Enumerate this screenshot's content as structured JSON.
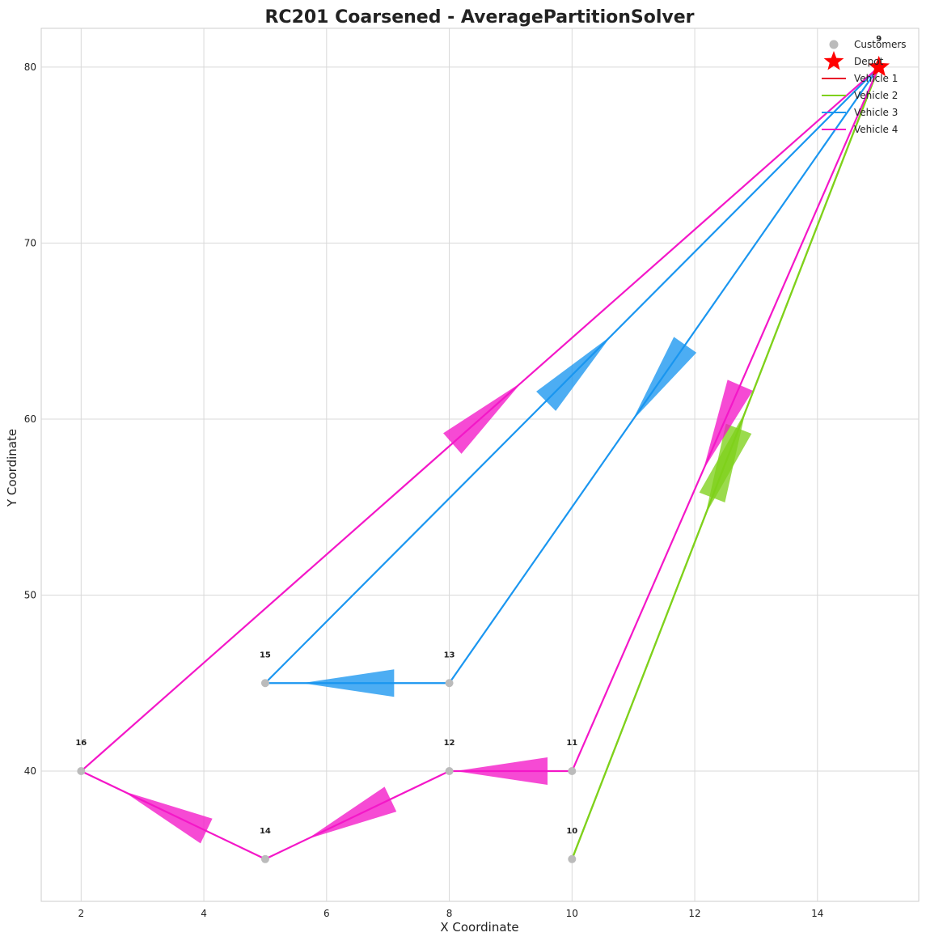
{
  "chart_data": {
    "type": "scatter",
    "title": "RC201 Coarsened - AveragePartitionSolver",
    "xlabel": "X Coordinate",
    "ylabel": "Y Coordinate",
    "xlim": [
      1.35,
      15.65
    ],
    "ylim": [
      32.6,
      82.2
    ],
    "xticks": [
      2,
      4,
      6,
      8,
      10,
      12,
      14
    ],
    "yticks": [
      40,
      50,
      60,
      70,
      80
    ],
    "grid": true,
    "legend_position": "top-right",
    "depot": {
      "id": "9",
      "x": 15,
      "y": 80,
      "color": "#ff0000",
      "legend": "Depot"
    },
    "customers": {
      "legend": "Customers",
      "color": "#bbbbbb",
      "points": [
        {
          "id": "10",
          "x": 10,
          "y": 35
        },
        {
          "id": "11",
          "x": 10,
          "y": 40
        },
        {
          "id": "12",
          "x": 8,
          "y": 40
        },
        {
          "id": "13",
          "x": 8,
          "y": 45
        },
        {
          "id": "14",
          "x": 5,
          "y": 35
        },
        {
          "id": "15",
          "x": 5,
          "y": 45
        },
        {
          "id": "16",
          "x": 2,
          "y": 40
        }
      ]
    },
    "series": [
      {
        "name": "Vehicle 1",
        "color": "#e8102a",
        "route": []
      },
      {
        "name": "Vehicle 2",
        "color": "#7fd11b",
        "route": [
          [
            15,
            80
          ],
          [
            10,
            35
          ],
          [
            15,
            80
          ]
        ]
      },
      {
        "name": "Vehicle 3",
        "color": "#1a96f0",
        "route": [
          [
            15,
            80
          ],
          [
            8,
            45
          ],
          [
            5,
            45
          ],
          [
            15,
            80
          ]
        ]
      },
      {
        "name": "Vehicle 4",
        "color": "#f417c8",
        "route": [
          [
            15,
            80
          ],
          [
            10,
            40
          ],
          [
            8,
            40
          ],
          [
            5,
            35
          ],
          [
            2,
            40
          ],
          [
            15,
            80
          ]
        ]
      }
    ]
  }
}
